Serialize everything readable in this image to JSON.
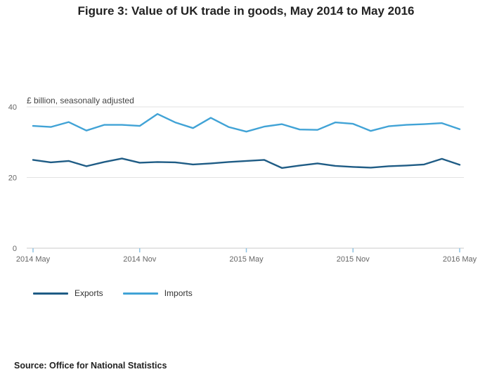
{
  "title": "Figure 3: Value of UK trade in goods, May 2014 to May 2016",
  "source": "Source: Office for National Statistics",
  "chart_data": {
    "type": "line",
    "title": "Figure 3: Value of UK trade in goods, May 2014 to May 2016",
    "ylabel": "£ billion, seasonally adjusted",
    "xlabel": "",
    "ylim": [
      0,
      40
    ],
    "yticks": [
      0,
      20,
      40
    ],
    "grid": true,
    "legend_position": "bottom",
    "x": [
      "May 2014",
      "Jun 2014",
      "Jul 2014",
      "Aug 2014",
      "Sep 2014",
      "Oct 2014",
      "Nov 2014",
      "Dec 2014",
      "Jan 2015",
      "Feb 2015",
      "Mar 2015",
      "Apr 2015",
      "May 2015",
      "Jun 2015",
      "Jul 2015",
      "Aug 2015",
      "Sep 2015",
      "Oct 2015",
      "Nov 2015",
      "Dec 2015",
      "Jan 2016",
      "Feb 2016",
      "Mar 2016",
      "Apr 2016",
      "May 2016"
    ],
    "xtick_indices": [
      0,
      6,
      12,
      18,
      24
    ],
    "xtick_labels": [
      "2014 May",
      "2014 Nov",
      "2015 May",
      "2015 Nov",
      "2016 May"
    ],
    "series": [
      {
        "name": "Exports",
        "color": "#1f5c85",
        "values": [
          25.0,
          24.3,
          24.7,
          23.2,
          24.4,
          25.4,
          24.2,
          24.4,
          24.3,
          23.7,
          24.0,
          24.4,
          24.7,
          25.0,
          22.7,
          23.4,
          24.0,
          23.3,
          23.0,
          22.8,
          23.2,
          23.4,
          23.7,
          25.3,
          23.6
        ]
      },
      {
        "name": "Imports",
        "color": "#41a3d6",
        "values": [
          34.6,
          34.3,
          35.7,
          33.3,
          34.9,
          34.9,
          34.6,
          38.0,
          35.6,
          34.0,
          36.9,
          34.3,
          33.0,
          34.4,
          35.1,
          33.6,
          33.5,
          35.6,
          35.2,
          33.2,
          34.5,
          34.9,
          35.1,
          35.4,
          33.7
        ]
      }
    ]
  }
}
